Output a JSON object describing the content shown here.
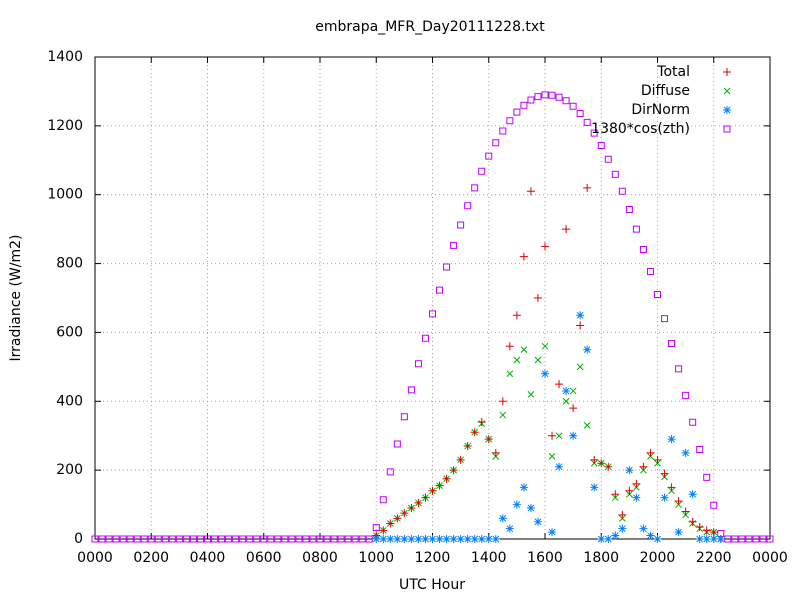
{
  "chart_data": {
    "type": "scatter",
    "title": "embrapa_MFR_Day20111228.txt",
    "xlabel": "UTC Hour",
    "ylabel": "Irradiance (W/m2)",
    "xlim": [
      0,
      24
    ],
    "ylim": [
      0,
      1400
    ],
    "xticks": [
      {
        "value": 0,
        "label": "0000"
      },
      {
        "value": 2,
        "label": "0200"
      },
      {
        "value": 4,
        "label": "0400"
      },
      {
        "value": 6,
        "label": "0600"
      },
      {
        "value": 8,
        "label": "0800"
      },
      {
        "value": 10,
        "label": "1000"
      },
      {
        "value": 12,
        "label": "1200"
      },
      {
        "value": 14,
        "label": "1400"
      },
      {
        "value": 16,
        "label": "1600"
      },
      {
        "value": 18,
        "label": "1800"
      },
      {
        "value": 20,
        "label": "2000"
      },
      {
        "value": 22,
        "label": "2200"
      },
      {
        "value": 24,
        "label": "0000"
      }
    ],
    "yticks": [
      0,
      200,
      400,
      600,
      800,
      1000,
      1200,
      1400
    ],
    "grid": true,
    "legend": "top-right",
    "series": [
      {
        "name": "Total",
        "color": "#e00000",
        "marker": "plus",
        "x": [
          10,
          10.25,
          10.5,
          10.75,
          11,
          11.25,
          11.5,
          11.75,
          12,
          12.25,
          12.5,
          12.75,
          13,
          13.25,
          13.5,
          13.75,
          14,
          14.25,
          14.5,
          14.75,
          15,
          15.25,
          15.5,
          15.75,
          16,
          16.25,
          16.5,
          16.75,
          17,
          17.25,
          17.5,
          17.75,
          18,
          18.25,
          18.5,
          18.75,
          19,
          19.25,
          19.5,
          19.75,
          20,
          20.25,
          20.5,
          20.75,
          21,
          21.25,
          21.5,
          21.75,
          22,
          22.25
        ],
        "values": [
          10,
          25,
          45,
          60,
          75,
          90,
          105,
          120,
          140,
          155,
          175,
          200,
          230,
          270,
          310,
          340,
          290,
          250,
          400,
          560,
          650,
          820,
          1010,
          700,
          850,
          300,
          450,
          900,
          380,
          620,
          1020,
          230,
          220,
          210,
          130,
          70,
          140,
          160,
          210,
          250,
          230,
          190,
          150,
          110,
          80,
          50,
          35,
          25,
          20,
          0
        ]
      },
      {
        "name": "Diffuse",
        "color": "#00b000",
        "marker": "cross",
        "x": [
          10,
          10.25,
          10.5,
          10.75,
          11,
          11.25,
          11.5,
          11.75,
          12,
          12.25,
          12.5,
          12.75,
          13,
          13.25,
          13.5,
          13.75,
          14,
          14.25,
          14.5,
          14.75,
          15,
          15.25,
          15.5,
          15.75,
          16,
          16.25,
          16.5,
          16.75,
          17,
          17.25,
          17.5,
          17.75,
          18,
          18.25,
          18.5,
          18.75,
          19,
          19.25,
          19.5,
          19.75,
          20,
          20.25,
          20.5,
          20.75,
          21,
          21.25,
          21.5,
          21.75,
          22,
          22.25
        ],
        "values": [
          10,
          25,
          45,
          60,
          75,
          90,
          105,
          120,
          140,
          155,
          175,
          200,
          230,
          270,
          310,
          335,
          290,
          240,
          360,
          480,
          520,
          550,
          420,
          520,
          560,
          240,
          300,
          400,
          430,
          500,
          330,
          220,
          220,
          210,
          120,
          60,
          130,
          150,
          200,
          240,
          220,
          180,
          140,
          100,
          70,
          45,
          30,
          20,
          20,
          0
        ]
      },
      {
        "name": "DirNorm",
        "color": "#0080ff",
        "marker": "star",
        "x": [
          10,
          10.25,
          10.5,
          10.75,
          11,
          11.25,
          11.5,
          11.75,
          12,
          12.25,
          12.5,
          12.75,
          13,
          13.25,
          13.5,
          13.75,
          14,
          14.25,
          14.5,
          14.75,
          15,
          15.25,
          15.5,
          15.75,
          16,
          16.25,
          16.5,
          16.75,
          17,
          17.25,
          17.5,
          17.75,
          18,
          18.25,
          18.5,
          18.75,
          19,
          19.25,
          19.5,
          19.75,
          20,
          20.25,
          20.5,
          20.75,
          21,
          21.25,
          21.5,
          21.75,
          22,
          22.25
        ],
        "values": [
          0,
          0,
          0,
          0,
          0,
          0,
          0,
          0,
          0,
          0,
          0,
          0,
          0,
          0,
          0,
          0,
          0,
          0,
          60,
          30,
          100,
          150,
          90,
          50,
          480,
          20,
          210,
          430,
          300,
          650,
          550,
          150,
          0,
          0,
          10,
          30,
          200,
          120,
          30,
          10,
          0,
          120,
          290,
          20,
          250,
          130,
          0,
          0,
          0,
          0
        ]
      },
      {
        "name": "1380*cos(zth)",
        "color": "#c000ff",
        "marker": "square",
        "x": [
          0,
          0.25,
          0.5,
          0.75,
          1,
          1.25,
          1.5,
          1.75,
          2,
          2.25,
          2.5,
          2.75,
          3,
          3.25,
          3.5,
          3.75,
          4,
          4.25,
          4.5,
          4.75,
          5,
          5.25,
          5.5,
          5.75,
          6,
          6.25,
          6.5,
          6.75,
          7,
          7.25,
          7.5,
          7.75,
          8,
          8.25,
          8.5,
          8.75,
          9,
          9.25,
          9.5,
          9.75,
          10,
          10.25,
          10.5,
          10.75,
          11,
          11.25,
          11.5,
          11.75,
          12,
          12.25,
          12.5,
          12.75,
          13,
          13.25,
          13.5,
          13.75,
          14,
          14.25,
          14.5,
          14.75,
          15,
          15.25,
          15.5,
          15.75,
          16,
          16.25,
          16.5,
          16.75,
          17,
          17.25,
          17.5,
          17.75,
          18,
          18.25,
          18.5,
          18.75,
          19,
          19.25,
          19.5,
          19.75,
          20,
          20.25,
          20.5,
          20.75,
          21,
          21.25,
          21.5,
          21.75,
          22,
          22.25,
          22.5,
          22.75,
          23,
          23.25,
          23.5,
          23.75,
          24
        ],
        "values": [
          0,
          0,
          0,
          0,
          0,
          0,
          0,
          0,
          0,
          0,
          0,
          0,
          0,
          0,
          0,
          0,
          0,
          0,
          0,
          0,
          0,
          0,
          0,
          0,
          0,
          0,
          0,
          0,
          0,
          0,
          0,
          0,
          0,
          0,
          0,
          0,
          0,
          0,
          0,
          0,
          33,
          114,
          195,
          276,
          355,
          433,
          509,
          583,
          654,
          723,
          790,
          853,
          912,
          968,
          1020,
          1068,
          1112,
          1151,
          1185,
          1215,
          1240,
          1260,
          1275,
          1285,
          1290,
          1289,
          1283,
          1273,
          1257,
          1236,
          1210,
          1179,
          1143,
          1103,
          1059,
          1010,
          957,
          900,
          841,
          777,
          710,
          640,
          568,
          494,
          417,
          339,
          260,
          179,
          98,
          16,
          0,
          0,
          0,
          0,
          0,
          0,
          0
        ]
      }
    ]
  }
}
